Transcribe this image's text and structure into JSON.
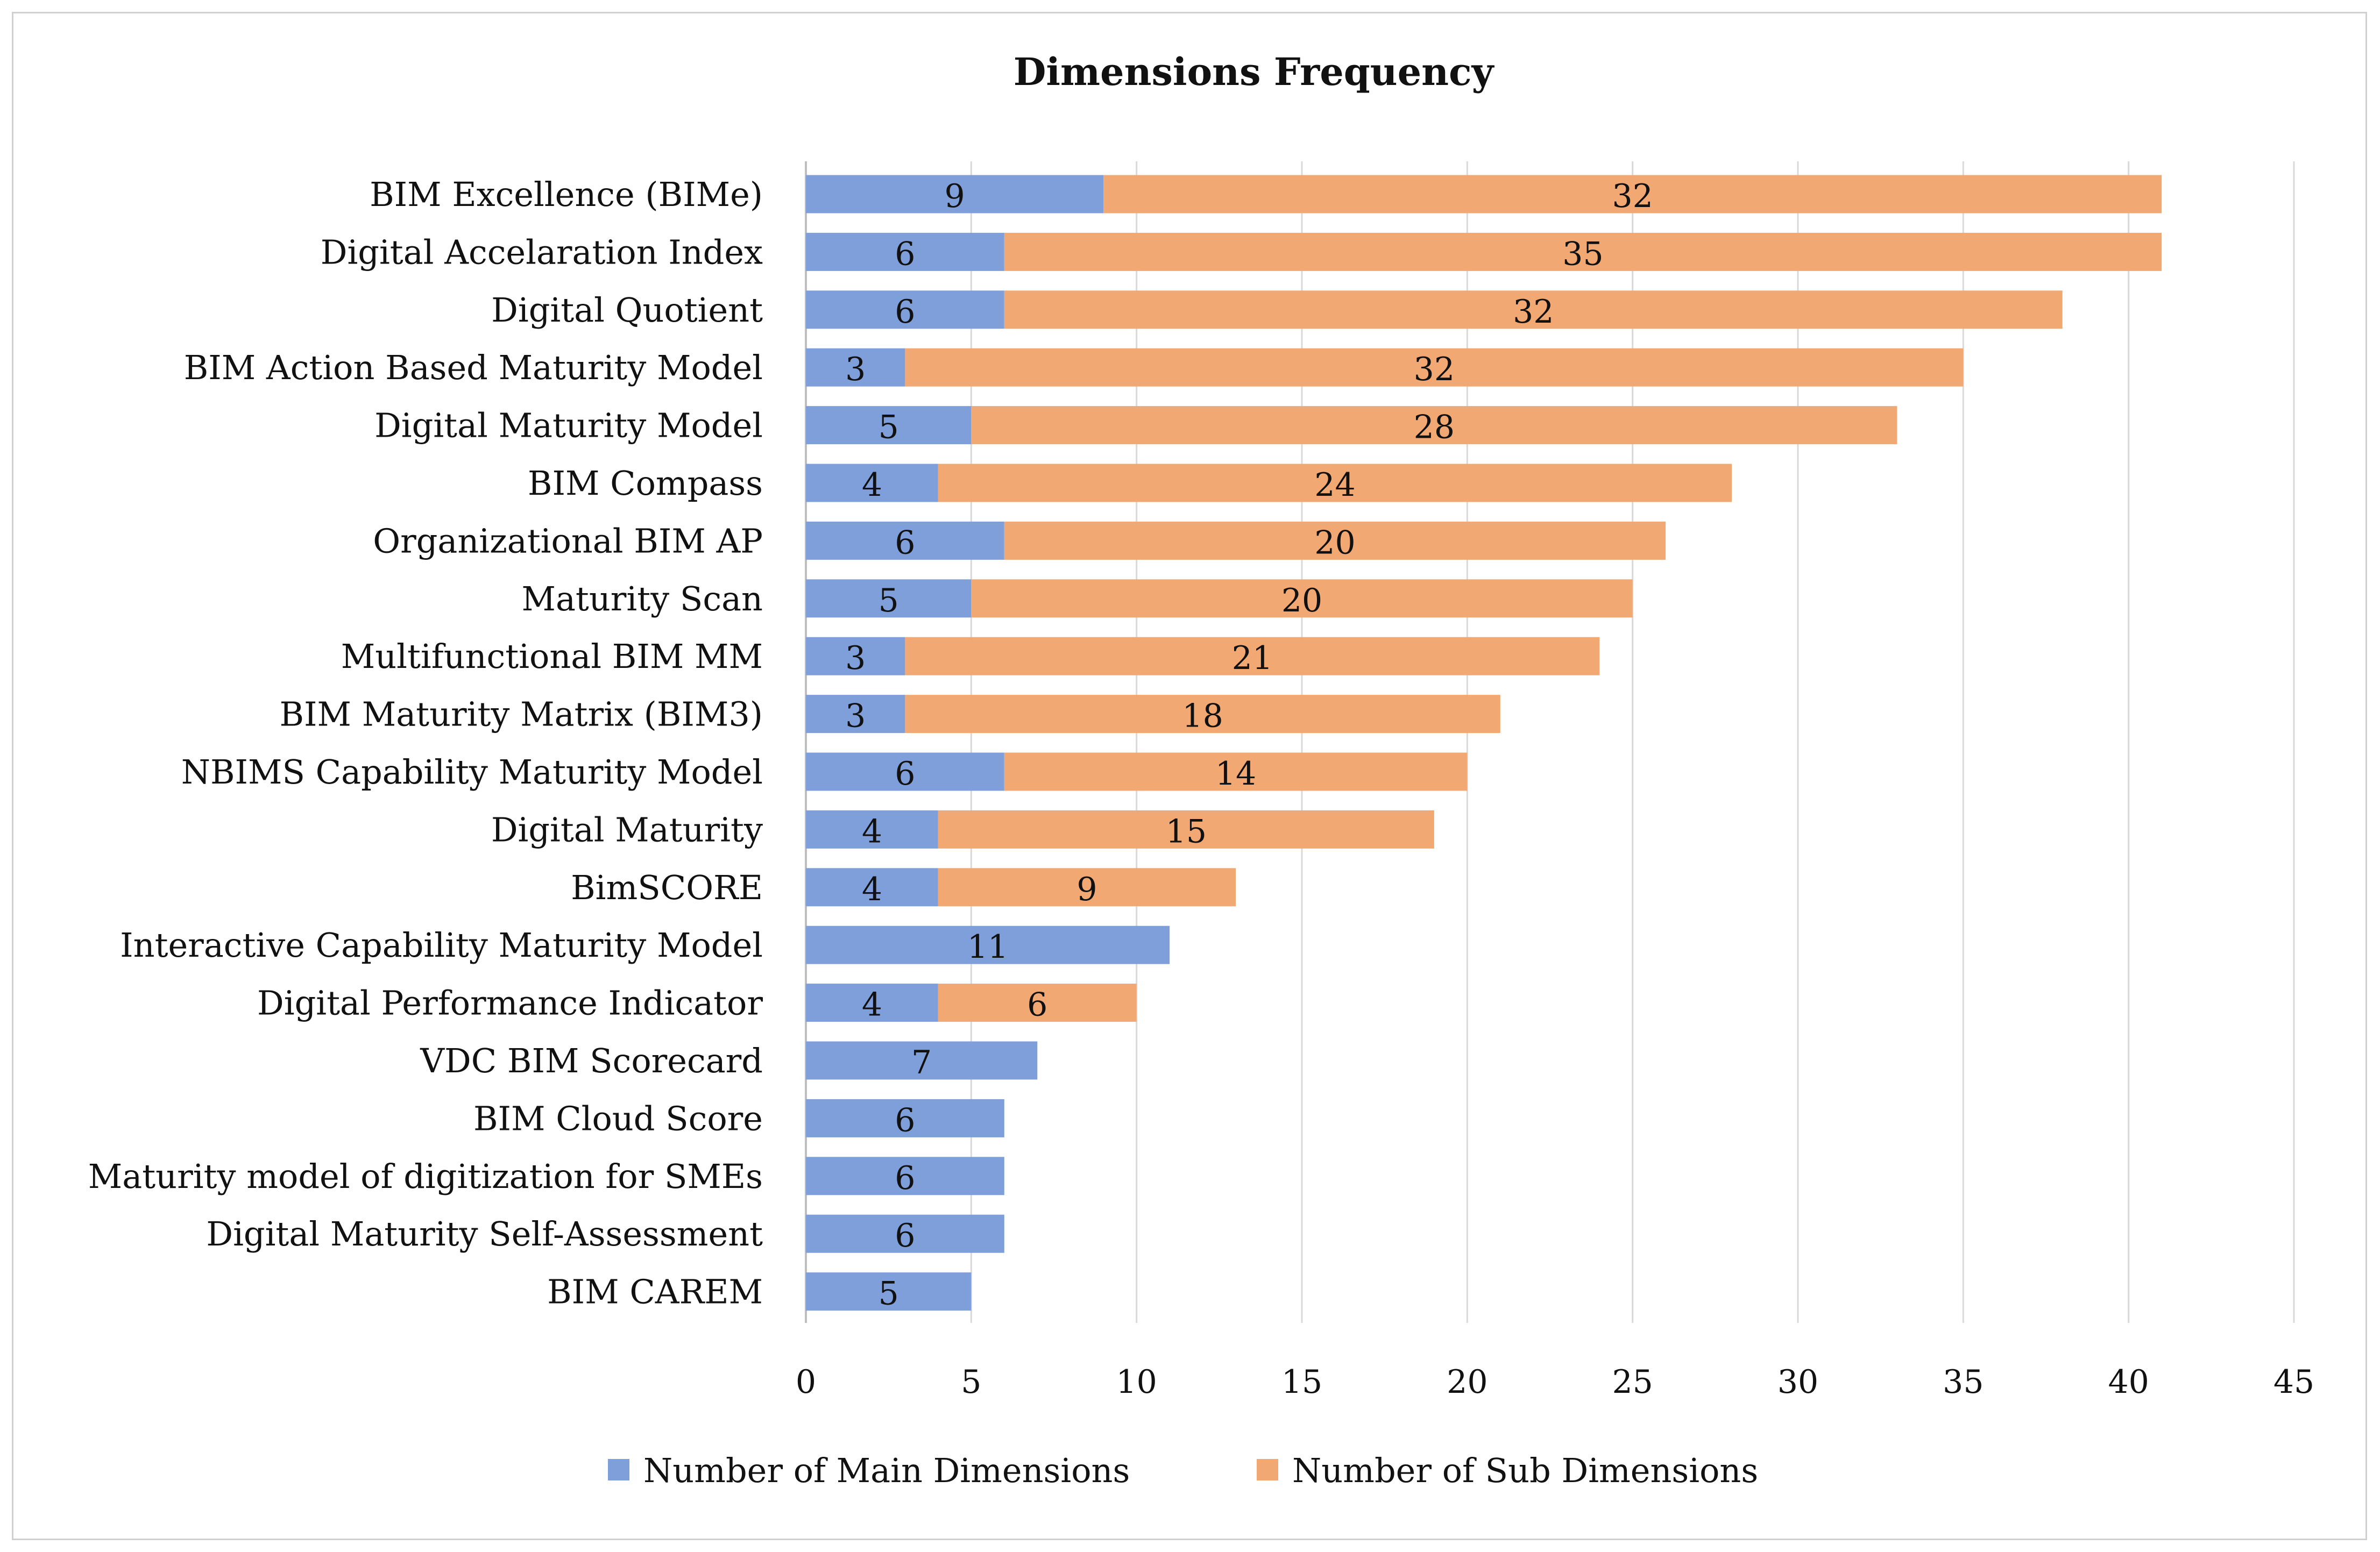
{
  "chart_data": {
    "type": "bar",
    "orientation": "horizontal",
    "stacked": true,
    "title": "Dimensions Frequency",
    "xlabel": "",
    "ylabel": "",
    "xlim": [
      0,
      45
    ],
    "xticks": [
      0,
      5,
      10,
      15,
      20,
      25,
      30,
      35,
      40,
      45
    ],
    "grid": true,
    "legend_position": "bottom",
    "categories": [
      "BIM Excellence (BIMe)",
      "Digital Accelaration Index",
      "Digital Quotient",
      "BIM Action Based Maturity Model",
      "Digital Maturity Model",
      "BIM Compass",
      "Organizational BIM AP",
      "Maturity Scan",
      "Multifunctional BIM MM",
      "BIM Maturity Matrix (BIM3)",
      "NBIMS Capability Maturity Model",
      "Digital Maturity",
      "BimSCORE",
      "Interactive Capability Maturity Model",
      "Digital Performance Indicator",
      "VDC BIM Scorecard",
      "BIM Cloud Score",
      "Maturity model of digitization for SMEs",
      "Digital Maturity Self-Assessment",
      "BIM CAREM"
    ],
    "series": [
      {
        "name": "Number of Main Dimensions",
        "color": "#7f9fdb",
        "values": [
          9,
          6,
          6,
          3,
          5,
          4,
          6,
          5,
          3,
          3,
          6,
          4,
          4,
          11,
          4,
          7,
          6,
          6,
          6,
          5
        ]
      },
      {
        "name": "Number of Sub Dimensions",
        "color": "#f2a872",
        "values": [
          32,
          35,
          32,
          32,
          28,
          24,
          20,
          20,
          21,
          18,
          14,
          15,
          9,
          null,
          6,
          null,
          null,
          null,
          null,
          null
        ]
      }
    ]
  }
}
